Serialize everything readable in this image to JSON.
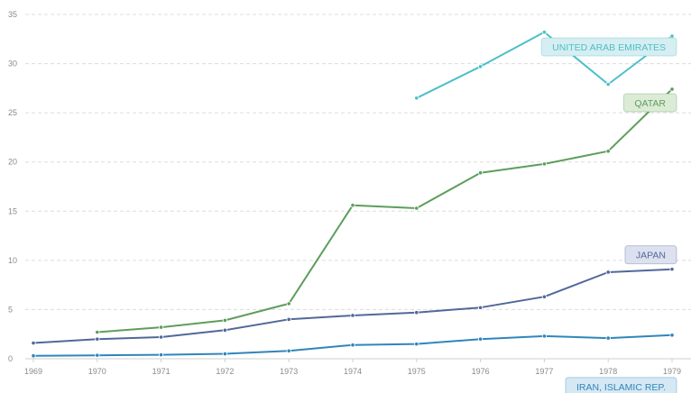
{
  "chart_data": {
    "type": "line",
    "title": "",
    "xlabel": "",
    "ylabel": "",
    "x": [
      1969,
      1970,
      1971,
      1972,
      1973,
      1974,
      1975,
      1976,
      1977,
      1978,
      1979
    ],
    "ylim": [
      0,
      35
    ],
    "y_ticks": [
      0,
      5,
      10,
      15,
      20,
      25,
      30,
      35
    ],
    "grid": true,
    "series": [
      {
        "name": "UNITED ARAB EMIRATES",
        "color": "#4cbfc9",
        "label_bg": "#d6eef1",
        "values": [
          null,
          null,
          null,
          null,
          null,
          null,
          26.5,
          29.7,
          33.2,
          27.9,
          32.8
        ]
      },
      {
        "name": "QATAR",
        "color": "#5d9e5c",
        "label_bg": "#dcebd6",
        "values": [
          null,
          2.7,
          3.2,
          3.9,
          5.6,
          15.6,
          15.3,
          18.9,
          19.8,
          21.1,
          27.4
        ]
      },
      {
        "name": "JAPAN",
        "color": "#51689a",
        "label_bg": "#dde1ef",
        "values": [
          1.6,
          2.0,
          2.2,
          2.9,
          4.0,
          4.4,
          4.7,
          5.2,
          6.3,
          8.8,
          9.1
        ]
      },
      {
        "name": "IRAN, ISLAMIC REP.",
        "color": "#2f86bb",
        "label_bg": "#d5e8f3",
        "values": [
          0.3,
          0.35,
          0.4,
          0.5,
          0.8,
          1.4,
          1.5,
          2.0,
          2.3,
          2.1,
          2.4
        ]
      }
    ]
  }
}
